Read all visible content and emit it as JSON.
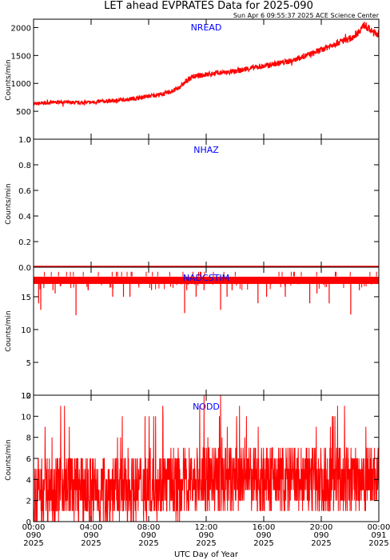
{
  "title": "LET ahead EVPRATES Data for 2025-090",
  "subtitle": "Sun Apr  6 09:55:37 2025 ACE Science Center",
  "colors": {
    "data": "#ff0000",
    "panel_label": "#0000ff",
    "axis": "#000000",
    "background": "#ffffff"
  },
  "x_axis": {
    "title": "UTC Day of Year",
    "ticks": [
      {
        "hour": 0,
        "time": "00:00",
        "doy": "090",
        "year": "2025"
      },
      {
        "hour": 4,
        "time": "04:00",
        "doy": "090",
        "year": "2025"
      },
      {
        "hour": 8,
        "time": "08:00",
        "doy": "090",
        "year": "2025"
      },
      {
        "hour": 12,
        "time": "12:00",
        "doy": "090",
        "year": "2025"
      },
      {
        "hour": 16,
        "time": "16:00",
        "doy": "090",
        "year": "2025"
      },
      {
        "hour": 20,
        "time": "20:00",
        "doy": "090",
        "year": "2025"
      },
      {
        "hour": 24,
        "time": "00:00",
        "doy": "091",
        "year": "2025"
      }
    ]
  },
  "chart_data": [
    {
      "type": "line",
      "label": "NREAD",
      "ylabel": "Counts/min",
      "xlim": [
        0,
        24
      ],
      "ylim": [
        0,
        2150
      ],
      "yticks": [
        0,
        500,
        1000,
        1500,
        2000
      ],
      "x": [
        0,
        1,
        2,
        3,
        4,
        5,
        6,
        7,
        8,
        9,
        9.5,
        10,
        10.5,
        11,
        12,
        13,
        14,
        15,
        16,
        17,
        18,
        19,
        20,
        21,
        21.5,
        22,
        22.5,
        23,
        23.5,
        24
      ],
      "values": [
        630,
        655,
        665,
        650,
        660,
        680,
        700,
        730,
        770,
        810,
        850,
        900,
        1010,
        1110,
        1160,
        1190,
        1210,
        1270,
        1310,
        1360,
        1410,
        1500,
        1600,
        1720,
        1760,
        1800,
        1900,
        2050,
        1930,
        1880
      ]
    },
    {
      "type": "line",
      "label": "NHAZ",
      "ylabel": "Counts/min",
      "xlim": [
        0,
        24
      ],
      "ylim": [
        0,
        1
      ],
      "yticks": [
        0.0,
        0.2,
        0.4,
        0.6,
        0.8,
        1.0
      ],
      "x": [
        0,
        24
      ],
      "values": [
        0,
        0
      ]
    },
    {
      "type": "line",
      "label": "NADCSTIM",
      "ylabel": "Counts/min",
      "xlim": [
        0,
        24
      ],
      "ylim": [
        0,
        19.5
      ],
      "yticks": [
        0,
        5,
        10,
        15
      ],
      "baseline": 17.5,
      "x": [
        0.35,
        0.5,
        1.35,
        1.5,
        2.95,
        3.8,
        5.5,
        6.25,
        6.7,
        8.2,
        10.5,
        10.65,
        11.3,
        11.85,
        13.0,
        13.45,
        13.8,
        15.6,
        16.2,
        17.5,
        19.2,
        19.7,
        20.55,
        22.05,
        22.65
      ],
      "values": [
        14,
        13,
        16,
        15.5,
        12.2,
        16,
        15,
        15,
        15,
        16,
        12.5,
        16,
        15,
        16,
        13,
        15,
        16,
        14,
        15,
        15,
        14,
        15.5,
        14,
        12.3,
        16
      ]
    },
    {
      "type": "line",
      "label": "NODD",
      "ylabel": "Counts/min",
      "xlim": [
        0,
        24
      ],
      "ylim": [
        0,
        12
      ],
      "yticks": [
        0,
        2,
        4,
        6,
        8,
        10,
        12
      ],
      "x": [
        0,
        2,
        4,
        6,
        8,
        10,
        12,
        14,
        16,
        18,
        20,
        22,
        24
      ],
      "values": [
        3,
        3.5,
        3,
        3,
        3.5,
        3.5,
        4,
        4,
        4,
        4,
        4,
        4,
        4.5
      ]
    }
  ]
}
